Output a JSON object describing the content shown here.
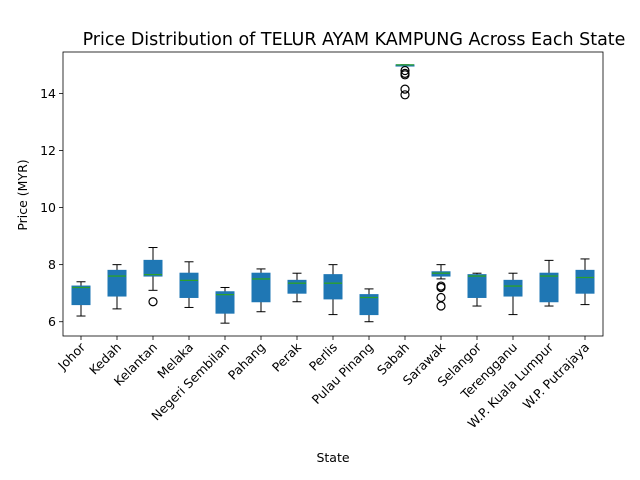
{
  "chart_data": {
    "type": "box",
    "title": "Price Distribution of TELUR AYAM KAMPUNG Across Each State",
    "xlabel": "State",
    "ylabel": "Price (MYR)",
    "ylim": [
      5.5,
      15.45
    ],
    "yticks": [
      6,
      8,
      10,
      12,
      14
    ],
    "grid": false,
    "legend": "none",
    "colors": {
      "box": "#1f77b4",
      "median": "#2ca02c",
      "whisker": "#000000",
      "flier": "#000000"
    },
    "categories": [
      "Johor",
      "Kedah",
      "Kelantan",
      "Melaka",
      "Negeri Sembilan",
      "Pahang",
      "Perak",
      "Perlis",
      "Pulau Pinang",
      "Sabah",
      "Sarawak",
      "Selangor",
      "Terengganu",
      "W.P. Kuala Lumpur",
      "W.P. Putrajaya"
    ],
    "boxes": [
      {
        "state": "Johor",
        "whislo": 6.2,
        "q1": 6.6,
        "med": 7.2,
        "q3": 7.25,
        "whishi": 7.4,
        "fliers": []
      },
      {
        "state": "Kedah",
        "whislo": 6.45,
        "q1": 6.9,
        "med": 7.6,
        "q3": 7.8,
        "whishi": 8.0,
        "fliers": []
      },
      {
        "state": "Kelantan",
        "whislo": 7.1,
        "q1": 7.6,
        "med": 7.65,
        "q3": 8.15,
        "whishi": 8.6,
        "fliers": [
          6.7
        ]
      },
      {
        "state": "Melaka",
        "whislo": 6.5,
        "q1": 6.85,
        "med": 7.45,
        "q3": 7.7,
        "whishi": 8.1,
        "fliers": []
      },
      {
        "state": "Negeri Sembilan",
        "whislo": 5.95,
        "q1": 6.3,
        "med": 6.95,
        "q3": 7.05,
        "whishi": 7.2,
        "fliers": []
      },
      {
        "state": "Pahang",
        "whislo": 6.35,
        "q1": 6.7,
        "med": 7.5,
        "q3": 7.7,
        "whishi": 7.85,
        "fliers": []
      },
      {
        "state": "Perak",
        "whislo": 6.7,
        "q1": 7.0,
        "med": 7.35,
        "q3": 7.45,
        "whishi": 7.7,
        "fliers": []
      },
      {
        "state": "Perlis",
        "whislo": 6.25,
        "q1": 6.8,
        "med": 7.35,
        "q3": 7.65,
        "whishi": 8.0,
        "fliers": []
      },
      {
        "state": "Pulau Pinang",
        "whislo": 6.0,
        "q1": 6.25,
        "med": 6.85,
        "q3": 6.95,
        "whishi": 7.15,
        "fliers": []
      },
      {
        "state": "Sabah",
        "whislo": 15.0,
        "q1": 15.0,
        "med": 15.0,
        "q3": 15.0,
        "whishi": 15.0,
        "fliers": [
          14.8,
          14.7,
          14.65,
          14.15,
          13.95
        ]
      },
      {
        "state": "Sarawak",
        "whislo": 7.5,
        "q1": 7.6,
        "med": 7.7,
        "q3": 7.75,
        "whishi": 8.0,
        "fliers": [
          7.25,
          7.2,
          6.85,
          6.55
        ]
      },
      {
        "state": "Selangor",
        "whislo": 6.55,
        "q1": 6.85,
        "med": 7.6,
        "q3": 7.65,
        "whishi": 7.7,
        "fliers": []
      },
      {
        "state": "Terengganu",
        "whislo": 6.25,
        "q1": 6.9,
        "med": 7.25,
        "q3": 7.45,
        "whishi": 7.7,
        "fliers": []
      },
      {
        "state": "W.P. Kuala Lumpur",
        "whislo": 6.55,
        "q1": 6.7,
        "med": 7.6,
        "q3": 7.7,
        "whishi": 8.15,
        "fliers": []
      },
      {
        "state": "W.P. Putrajaya",
        "whislo": 6.6,
        "q1": 7.0,
        "med": 7.55,
        "q3": 7.8,
        "whishi": 8.2,
        "fliers": []
      }
    ]
  }
}
